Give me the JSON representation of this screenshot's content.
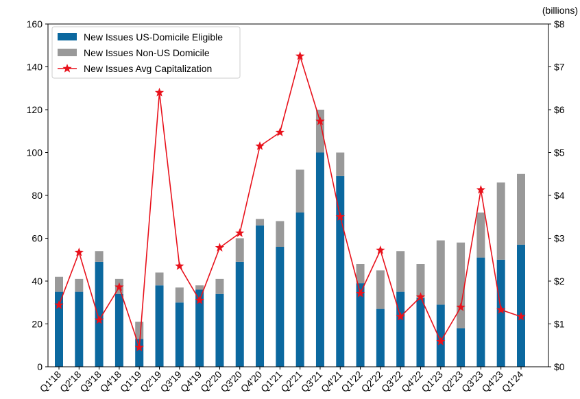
{
  "chart_data": {
    "type": "bar",
    "y2label": "(billions)",
    "categories": [
      "Q1'18",
      "Q2'18",
      "Q3'18",
      "Q4'18",
      "Q1'19",
      "Q2'19",
      "Q3'19",
      "Q4'19",
      "Q2'20",
      "Q3'20",
      "Q4'20",
      "Q1'21",
      "Q2'21",
      "Q3'21",
      "Q4'21",
      "Q1'22",
      "Q2'22",
      "Q3'22",
      "Q4'22",
      "Q1'23",
      "Q2'23",
      "Q3'23",
      "Q4'23",
      "Q1'24"
    ],
    "stacked": true,
    "series": [
      {
        "name": "New Issues US-Domicile Eligible",
        "type": "bar",
        "color": "#0b689f",
        "values": [
          35,
          35,
          49,
          34,
          13,
          38,
          30,
          36,
          34,
          49,
          66,
          56,
          72,
          100,
          89,
          39,
          27,
          35,
          32,
          29,
          18,
          51,
          50,
          57
        ]
      },
      {
        "name": "New Issues Non-US Domicile",
        "type": "bar",
        "color": "#999999",
        "values": [
          7,
          6,
          5,
          7,
          8,
          6,
          7,
          2,
          7,
          11,
          3,
          12,
          20,
          20,
          11,
          9,
          18,
          19,
          16,
          30,
          40,
          21,
          36,
          33
        ]
      },
      {
        "name": "New Issues Avg Capitalization",
        "type": "line",
        "axis": "y2",
        "color": "#e8111b",
        "marker": "star",
        "values": [
          1.44,
          2.67,
          1.09,
          1.86,
          0.45,
          6.4,
          2.35,
          1.55,
          2.78,
          3.12,
          5.15,
          5.47,
          7.25,
          5.73,
          3.5,
          1.71,
          2.72,
          1.17,
          1.63,
          0.59,
          1.39,
          4.13,
          1.33,
          1.17
        ]
      }
    ],
    "ylim": [
      0,
      160
    ],
    "yticks": [
      0,
      20,
      40,
      60,
      80,
      100,
      120,
      140,
      160
    ],
    "y2lim": [
      0,
      8
    ],
    "y2ticks": [
      {
        "value": 0,
        "label": "$0"
      },
      {
        "value": 1,
        "label": "$1"
      },
      {
        "value": 2,
        "label": "$2"
      },
      {
        "value": 3,
        "label": "$3"
      },
      {
        "value": 4,
        "label": "$4"
      },
      {
        "value": 5,
        "label": "$5"
      },
      {
        "value": 6,
        "label": "$6"
      },
      {
        "value": 7,
        "label": "$7"
      },
      {
        "value": 8,
        "label": "$8"
      }
    ],
    "legend": "upper left",
    "grid": false
  }
}
